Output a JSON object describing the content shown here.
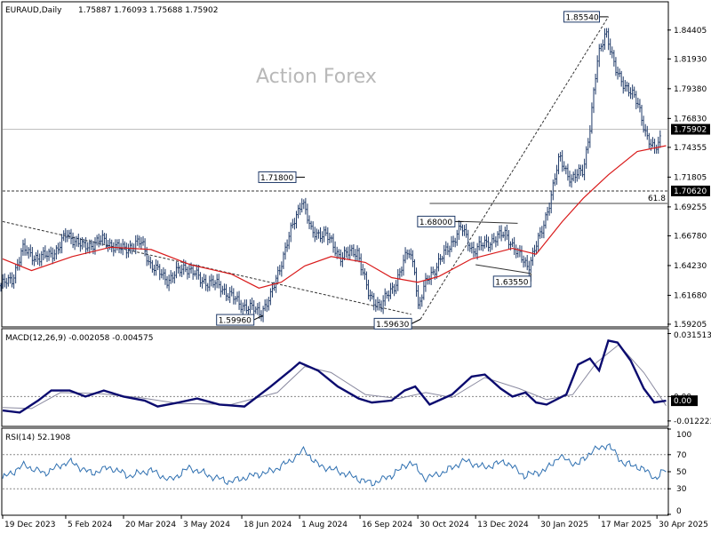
{
  "chart_data": {
    "type": "candlestick",
    "main": {
      "symbol_label": "EURAUD,Daily",
      "ohlc_label": "1.75887 1.76093 1.75688 1.75902",
      "watermark": "Action Forex",
      "ylim": [
        1.5905,
        1.8675
      ],
      "yticks": [
        "1.84405",
        "1.81930",
        "1.79380",
        "1.76830",
        "1.74355",
        "1.71805",
        "1.69255",
        "1.66780",
        "1.64230",
        "1.61680",
        "1.59205"
      ],
      "last_price": "1.75902",
      "support_line": "1.70620",
      "fib_level": "61.8",
      "fib_value": 1.6955,
      "colors": {
        "candle": "#1f3a68",
        "ma": "#d91a1a",
        "line": "#333333"
      },
      "annotations": [
        {
          "label": "1.85540",
          "date": "2025-03-24",
          "value": 1.8554
        },
        {
          "label": "1.71800",
          "date": "2024-08-05",
          "value": 1.718
        },
        {
          "label": "1.68000",
          "date": "2024-12-04",
          "value": 1.68
        },
        {
          "label": "1.63550",
          "date": "2025-01-24",
          "value": 1.6355
        },
        {
          "label": "1.59960",
          "date": "2024-07-04",
          "value": 1.5996
        },
        {
          "label": "1.59630",
          "date": "2024-11-01",
          "value": 1.5963
        }
      ],
      "trendlines": [
        {
          "from": {
            "date": "2023-12-19",
            "value": 1.68
          },
          "to": {
            "date": "2024-10-25",
            "value": 1.6005
          }
        },
        {
          "from": {
            "date": "2024-11-01",
            "value": 1.5963
          },
          "to": {
            "date": "2025-03-24",
            "value": 1.8554
          }
        },
        {
          "from": {
            "date": "2024-12-04",
            "value": 1.68
          },
          "to": {
            "date": "2025-01-14",
            "value": 1.6785
          }
        },
        {
          "from": {
            "date": "2024-12-13",
            "value": 1.643
          },
          "to": {
            "date": "2025-01-24",
            "value": 1.6355
          }
        }
      ],
      "price_path": [
        {
          "date": "2023-12-19",
          "value": 1.625
        },
        {
          "date": "2023-12-28",
          "value": 1.63
        },
        {
          "date": "2024-01-05",
          "value": 1.656
        },
        {
          "date": "2024-01-18",
          "value": 1.648
        },
        {
          "date": "2024-02-01",
          "value": 1.656
        },
        {
          "date": "2024-02-08",
          "value": 1.67
        },
        {
          "date": "2024-02-20",
          "value": 1.658
        },
        {
          "date": "2024-03-06",
          "value": 1.664
        },
        {
          "date": "2024-03-20",
          "value": 1.656
        },
        {
          "date": "2024-04-05",
          "value": 1.662
        },
        {
          "date": "2024-04-12",
          "value": 1.642
        },
        {
          "date": "2024-04-25",
          "value": 1.63
        },
        {
          "date": "2024-05-08",
          "value": 1.642
        },
        {
          "date": "2024-05-20",
          "value": 1.63
        },
        {
          "date": "2024-06-03",
          "value": 1.625
        },
        {
          "date": "2024-06-18",
          "value": 1.61
        },
        {
          "date": "2024-07-04",
          "value": 1.602
        },
        {
          "date": "2024-07-12",
          "value": 1.615
        },
        {
          "date": "2024-07-24",
          "value": 1.66
        },
        {
          "date": "2024-08-05",
          "value": 1.7
        },
        {
          "date": "2024-08-12",
          "value": 1.67
        },
        {
          "date": "2024-08-22",
          "value": 1.67
        },
        {
          "date": "2024-09-03",
          "value": 1.65
        },
        {
          "date": "2024-09-16",
          "value": 1.655
        },
        {
          "date": "2024-09-25",
          "value": 1.615
        },
        {
          "date": "2024-10-04",
          "value": 1.608
        },
        {
          "date": "2024-10-14",
          "value": 1.625
        },
        {
          "date": "2024-10-25",
          "value": 1.655
        },
        {
          "date": "2024-10-30",
          "value": 1.64
        },
        {
          "date": "2024-11-01",
          "value": 1.605
        },
        {
          "date": "2024-11-08",
          "value": 1.63
        },
        {
          "date": "2024-11-20",
          "value": 1.65
        },
        {
          "date": "2024-12-04",
          "value": 1.675
        },
        {
          "date": "2024-12-13",
          "value": 1.655
        },
        {
          "date": "2024-12-24",
          "value": 1.662
        },
        {
          "date": "2025-01-07",
          "value": 1.67
        },
        {
          "date": "2025-01-16",
          "value": 1.652
        },
        {
          "date": "2025-01-24",
          "value": 1.642
        },
        {
          "date": "2025-02-03",
          "value": 1.67
        },
        {
          "date": "2025-02-10",
          "value": 1.7
        },
        {
          "date": "2025-02-17",
          "value": 1.735
        },
        {
          "date": "2025-02-26",
          "value": 1.715
        },
        {
          "date": "2025-03-07",
          "value": 1.725
        },
        {
          "date": "2025-03-12",
          "value": 1.76
        },
        {
          "date": "2025-03-18",
          "value": 1.82
        },
        {
          "date": "2025-03-24",
          "value": 1.845
        },
        {
          "date": "2025-03-31",
          "value": 1.81
        },
        {
          "date": "2025-04-09",
          "value": 1.795
        },
        {
          "date": "2025-04-18",
          "value": 1.78
        },
        {
          "date": "2025-04-25",
          "value": 1.75
        },
        {
          "date": "2025-04-30",
          "value": 1.74
        },
        {
          "date": "2025-05-07",
          "value": 1.759
        }
      ],
      "ma_path": [
        {
          "date": "2023-12-19",
          "value": 1.648
        },
        {
          "date": "2024-01-10",
          "value": 1.638
        },
        {
          "date": "2024-02-10",
          "value": 1.65
        },
        {
          "date": "2024-03-10",
          "value": 1.658
        },
        {
          "date": "2024-04-10",
          "value": 1.656
        },
        {
          "date": "2024-05-10",
          "value": 1.643
        },
        {
          "date": "2024-06-10",
          "value": 1.635
        },
        {
          "date": "2024-07-01",
          "value": 1.623
        },
        {
          "date": "2024-07-18",
          "value": 1.628
        },
        {
          "date": "2024-08-05",
          "value": 1.642
        },
        {
          "date": "2024-08-25",
          "value": 1.65
        },
        {
          "date": "2024-09-20",
          "value": 1.645
        },
        {
          "date": "2024-10-10",
          "value": 1.632
        },
        {
          "date": "2024-10-30",
          "value": 1.628
        },
        {
          "date": "2024-11-15",
          "value": 1.633
        },
        {
          "date": "2024-12-10",
          "value": 1.648
        },
        {
          "date": "2025-01-10",
          "value": 1.657
        },
        {
          "date": "2025-01-28",
          "value": 1.652
        },
        {
          "date": "2025-02-17",
          "value": 1.68
        },
        {
          "date": "2025-03-05",
          "value": 1.7
        },
        {
          "date": "2025-03-24",
          "value": 1.72
        },
        {
          "date": "2025-04-15",
          "value": 1.74
        },
        {
          "date": "2025-05-07",
          "value": 1.745
        }
      ]
    },
    "macd": {
      "label": "MACD(12,26,9) -0.002058 -0.004575",
      "ylim": [
        -0.0145,
        0.0335
      ],
      "yticks": [
        "0.031513",
        "0.00",
        "-0.012223"
      ],
      "last_labels": [
        "0.00"
      ],
      "colors": {
        "macd": "#0b0b6f",
        "signal": "#8a8aa0"
      },
      "macd_path": [
        {
          "date": "2023-12-19",
          "value": -0.007
        },
        {
          "date": "2024-01-01",
          "value": -0.008
        },
        {
          "date": "2024-01-15",
          "value": -0.002
        },
        {
          "date": "2024-01-25",
          "value": 0.003
        },
        {
          "date": "2024-02-08",
          "value": 0.003
        },
        {
          "date": "2024-02-20",
          "value": 0.0
        },
        {
          "date": "2024-03-05",
          "value": 0.003
        },
        {
          "date": "2024-03-20",
          "value": 0.0
        },
        {
          "date": "2024-04-05",
          "value": -0.002
        },
        {
          "date": "2024-04-15",
          "value": -0.005
        },
        {
          "date": "2024-05-01",
          "value": -0.003
        },
        {
          "date": "2024-05-15",
          "value": -0.001
        },
        {
          "date": "2024-06-01",
          "value": -0.004
        },
        {
          "date": "2024-06-20",
          "value": -0.005
        },
        {
          "date": "2024-07-10",
          "value": 0.005
        },
        {
          "date": "2024-07-25",
          "value": 0.013
        },
        {
          "date": "2024-08-01",
          "value": 0.017
        },
        {
          "date": "2024-08-15",
          "value": 0.013
        },
        {
          "date": "2024-08-30",
          "value": 0.005
        },
        {
          "date": "2024-09-15",
          "value": -0.001
        },
        {
          "date": "2024-09-25",
          "value": -0.003
        },
        {
          "date": "2024-10-10",
          "value": -0.002
        },
        {
          "date": "2024-10-20",
          "value": 0.003
        },
        {
          "date": "2024-10-28",
          "value": 0.005
        },
        {
          "date": "2024-11-08",
          "value": -0.004
        },
        {
          "date": "2024-11-25",
          "value": 0.001
        },
        {
          "date": "2024-12-10",
          "value": 0.01
        },
        {
          "date": "2024-12-20",
          "value": 0.011
        },
        {
          "date": "2025-01-01",
          "value": 0.004
        },
        {
          "date": "2025-01-10",
          "value": 0.0
        },
        {
          "date": "2025-01-20",
          "value": 0.002
        },
        {
          "date": "2025-01-28",
          "value": -0.003
        },
        {
          "date": "2025-02-05",
          "value": -0.004
        },
        {
          "date": "2025-02-20",
          "value": 0.001
        },
        {
          "date": "2025-03-01",
          "value": 0.016
        },
        {
          "date": "2025-03-10",
          "value": 0.019
        },
        {
          "date": "2025-03-17",
          "value": 0.013
        },
        {
          "date": "2025-03-24",
          "value": 0.028
        },
        {
          "date": "2025-03-31",
          "value": 0.027
        },
        {
          "date": "2025-04-10",
          "value": 0.018
        },
        {
          "date": "2025-04-20",
          "value": 0.004
        },
        {
          "date": "2025-04-28",
          "value": -0.003
        },
        {
          "date": "2025-05-07",
          "value": -0.0021
        }
      ],
      "signal_path": [
        {
          "date": "2023-12-19",
          "value": -0.0055
        },
        {
          "date": "2024-01-10",
          "value": -0.006
        },
        {
          "date": "2024-02-01",
          "value": 0.002
        },
        {
          "date": "2024-03-01",
          "value": 0.0015
        },
        {
          "date": "2024-04-01",
          "value": -0.0005
        },
        {
          "date": "2024-05-01",
          "value": -0.0035
        },
        {
          "date": "2024-06-10",
          "value": -0.004
        },
        {
          "date": "2024-07-15",
          "value": 0.002
        },
        {
          "date": "2024-08-05",
          "value": 0.015
        },
        {
          "date": "2024-08-25",
          "value": 0.012
        },
        {
          "date": "2024-09-20",
          "value": 0.001
        },
        {
          "date": "2024-10-15",
          "value": -0.001
        },
        {
          "date": "2024-11-05",
          "value": 0.002
        },
        {
          "date": "2024-11-25",
          "value": -0.0005
        },
        {
          "date": "2024-12-20",
          "value": 0.0095
        },
        {
          "date": "2025-01-15",
          "value": 0.004
        },
        {
          "date": "2025-02-05",
          "value": -0.0015
        },
        {
          "date": "2025-02-25",
          "value": 0.001
        },
        {
          "date": "2025-03-15",
          "value": 0.017
        },
        {
          "date": "2025-04-01",
          "value": 0.026
        },
        {
          "date": "2025-04-20",
          "value": 0.012
        },
        {
          "date": "2025-05-07",
          "value": -0.0046
        }
      ]
    },
    "rsi": {
      "label": "RSI(14) 52.1908",
      "ylim": [
        0,
        100
      ],
      "yticks": [
        "100",
        "70",
        "50",
        "30",
        "0"
      ],
      "color": "#2e6fb0",
      "rsi_path": [
        {
          "date": "2023-12-19",
          "value": 42
        },
        {
          "date": "2024-01-05",
          "value": 58
        },
        {
          "date": "2024-01-20",
          "value": 48
        },
        {
          "date": "2024-02-08",
          "value": 62
        },
        {
          "date": "2024-02-25",
          "value": 48
        },
        {
          "date": "2024-03-10",
          "value": 55
        },
        {
          "date": "2024-03-25",
          "value": 45
        },
        {
          "date": "2024-04-10",
          "value": 52
        },
        {
          "date": "2024-04-25",
          "value": 40
        },
        {
          "date": "2024-05-10",
          "value": 55
        },
        {
          "date": "2024-05-25",
          "value": 45
        },
        {
          "date": "2024-06-10",
          "value": 38
        },
        {
          "date": "2024-06-25",
          "value": 45
        },
        {
          "date": "2024-07-10",
          "value": 50
        },
        {
          "date": "2024-07-25",
          "value": 62
        },
        {
          "date": "2024-08-05",
          "value": 76
        },
        {
          "date": "2024-08-15",
          "value": 58
        },
        {
          "date": "2024-08-28",
          "value": 52
        },
        {
          "date": "2024-09-10",
          "value": 45
        },
        {
          "date": "2024-09-25",
          "value": 36
        },
        {
          "date": "2024-10-10",
          "value": 45
        },
        {
          "date": "2024-10-25",
          "value": 62
        },
        {
          "date": "2024-11-05",
          "value": 42
        },
        {
          "date": "2024-11-20",
          "value": 50
        },
        {
          "date": "2024-12-05",
          "value": 63
        },
        {
          "date": "2024-12-20",
          "value": 55
        },
        {
          "date": "2025-01-05",
          "value": 62
        },
        {
          "date": "2025-01-20",
          "value": 45
        },
        {
          "date": "2025-02-05",
          "value": 52
        },
        {
          "date": "2025-02-15",
          "value": 68
        },
        {
          "date": "2025-03-01",
          "value": 58
        },
        {
          "date": "2025-03-12",
          "value": 74
        },
        {
          "date": "2025-03-24",
          "value": 82
        },
        {
          "date": "2025-04-05",
          "value": 60
        },
        {
          "date": "2025-04-18",
          "value": 55
        },
        {
          "date": "2025-04-30",
          "value": 42
        },
        {
          "date": "2025-05-07",
          "value": 52
        }
      ]
    },
    "x_dates": [
      "2023-12-19",
      "2024-02-05",
      "2024-03-20",
      "2024-05-03",
      "2024-06-18",
      "2024-08-01",
      "2024-09-16",
      "2024-10-30",
      "2024-12-13",
      "2025-01-30",
      "2025-03-17",
      "2025-04-30"
    ],
    "x_labels": [
      "19 Dec 2023",
      "5 Feb 2024",
      "20 Mar 2024",
      "3 May 2024",
      "18 Jun 2024",
      "1 Aug 2024",
      "16 Sep 2024",
      "30 Oct 2024",
      "13 Dec 2024",
      "30 Jan 2025",
      "17 Mar 2025",
      "30 Apr 2025"
    ],
    "x_start": "2023-12-19",
    "x_end": "2025-05-08"
  }
}
